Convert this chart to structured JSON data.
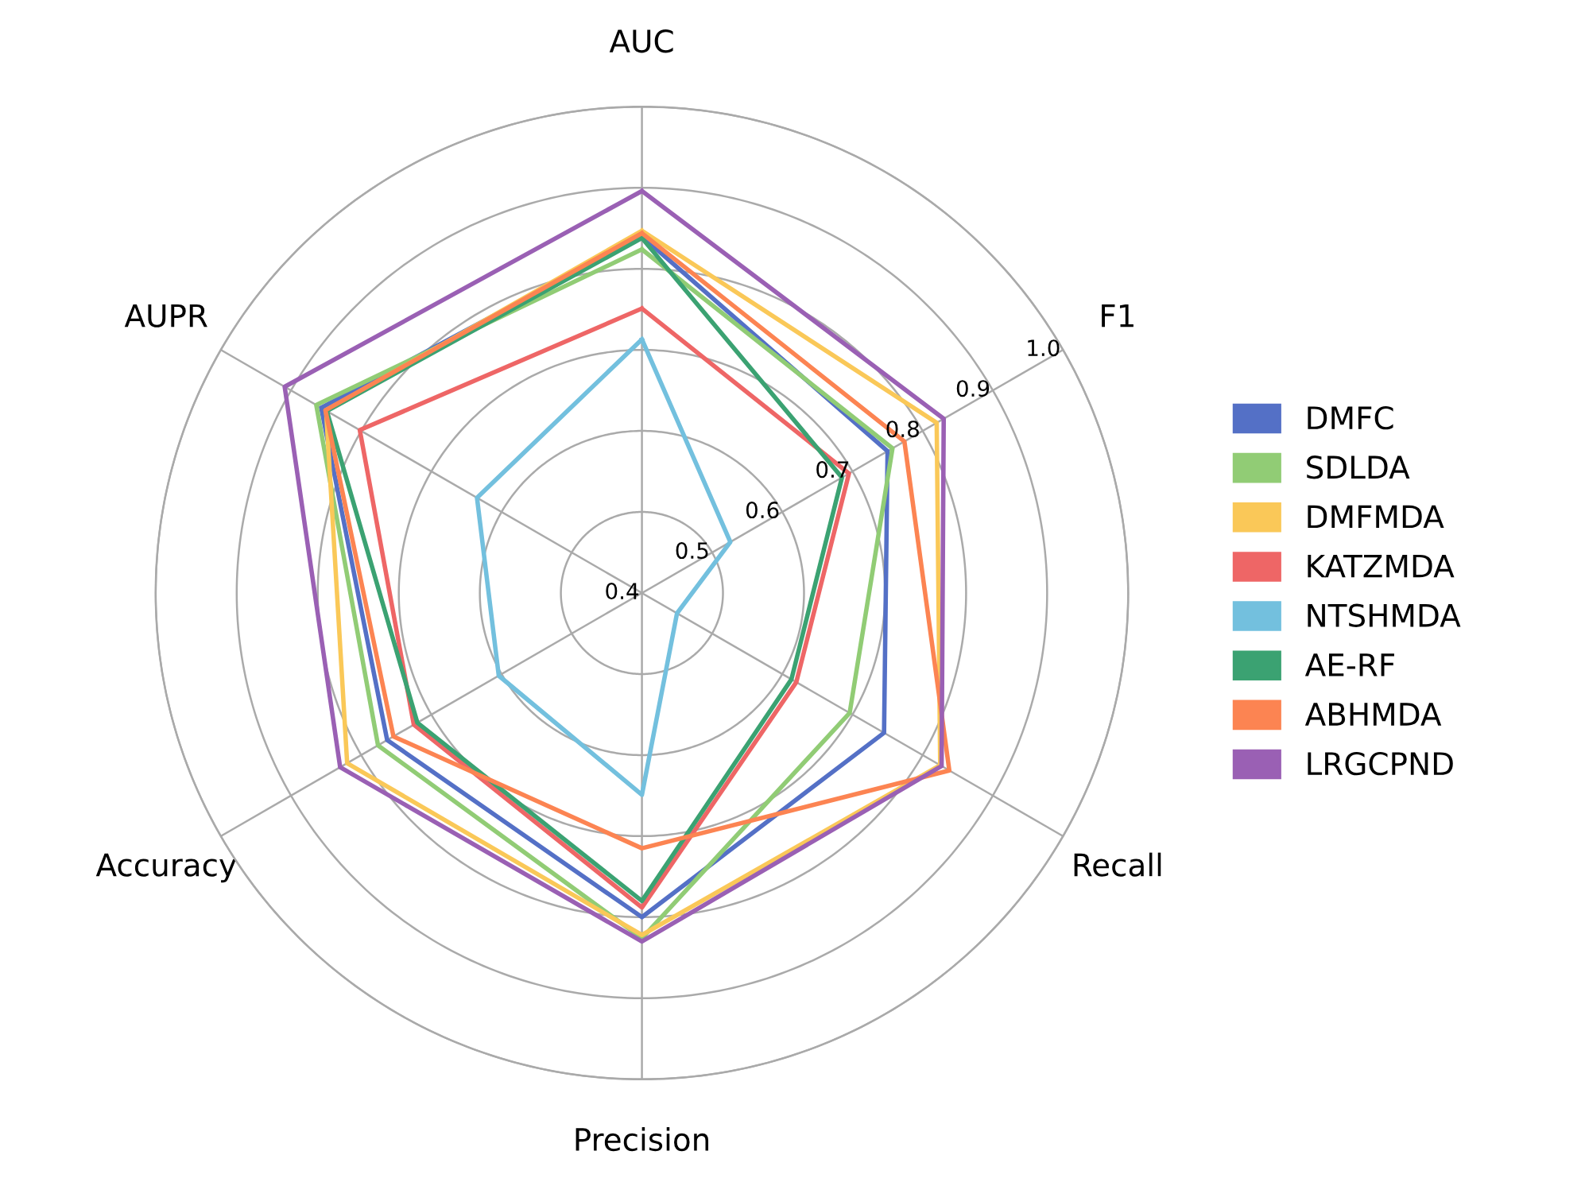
{
  "chart_data": {
    "type": "radar",
    "categories": [
      "AUC",
      "F1",
      "Recall",
      "Precision",
      "Accuracy",
      "AUPR"
    ],
    "ylim": [
      0.4,
      1.0
    ],
    "yticks": [
      0.4,
      0.5,
      0.6,
      0.7,
      0.8,
      0.9,
      {
        "value": 1,
        "label": "1.0"
      }
    ],
    "grid": true,
    "legend": "right",
    "series": [
      {
        "name": "DMFC",
        "color": "#5470c6",
        "values": [
          0.84,
          0.75,
          0.745,
          0.8,
          0.763,
          0.857
        ]
      },
      {
        "name": "SDLDA",
        "color": "#91cc75",
        "values": [
          0.824,
          0.757,
          0.696,
          0.826,
          0.776,
          0.864
        ]
      },
      {
        "name": "DMFMDA",
        "color": "#fac858",
        "values": [
          0.847,
          0.82,
          0.825,
          0.822,
          0.82,
          0.85
        ]
      },
      {
        "name": "KATZMDA",
        "color": "#ee6666",
        "values": [
          0.751,
          0.695,
          0.62,
          0.788,
          0.725,
          0.802
        ]
      },
      {
        "name": "NTSHMDA",
        "color": "#73c0de",
        "values": [
          0.713,
          0.526,
          0.45,
          0.649,
          0.604,
          0.635
        ]
      },
      {
        "name": "AE-RF",
        "color": "#3ba272",
        "values": [
          0.838,
          0.685,
          0.613,
          0.78,
          0.72,
          0.849
        ]
      },
      {
        "name": "ABHMDA",
        "color": "#fc8452",
        "values": [
          0.844,
          0.774,
          0.838,
          0.715,
          0.754,
          0.851
        ]
      },
      {
        "name": "LRGCPND",
        "color": "#9a60b4",
        "values": [
          0.896,
          0.83,
          0.827,
          0.83,
          0.83,
          0.909
        ]
      }
    ]
  }
}
